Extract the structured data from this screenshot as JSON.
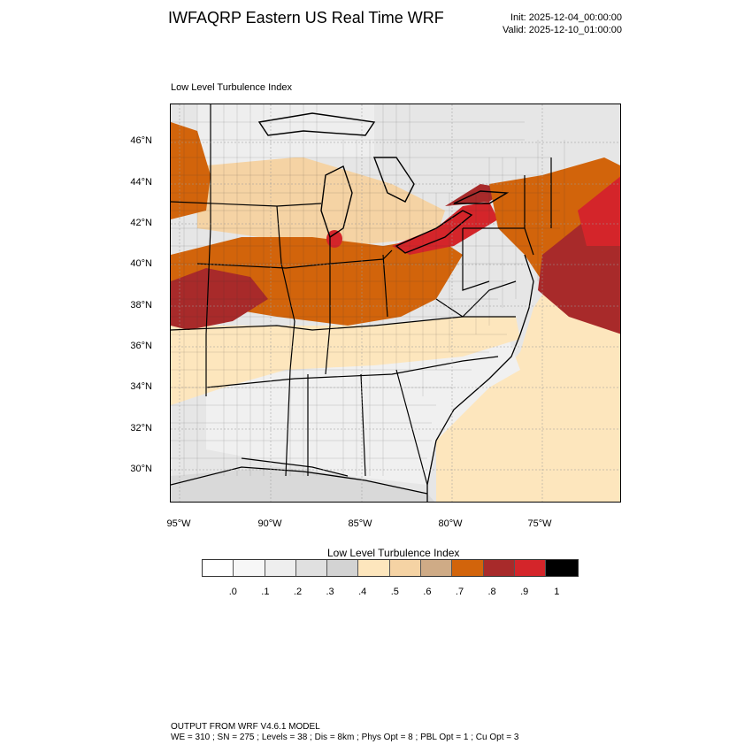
{
  "header": {
    "title": "IWFAQRP Eastern US Real Time WRF",
    "init": "Init: 2025-12-04_00:00:00",
    "valid": "Valid: 2025-12-10_01:00:00"
  },
  "map": {
    "field_label": "Low Level Turbulence Index",
    "lat_labels": [
      "46°N",
      "44°N",
      "42°N",
      "40°N",
      "38°N",
      "36°N",
      "34°N",
      "32°N",
      "30°N"
    ],
    "lon_labels": [
      "95°W",
      "90°W",
      "85°W",
      "80°W",
      "75°W"
    ]
  },
  "colorbar": {
    "title": "Low Level Turbulence Index",
    "colors": [
      "#ffffff",
      "#f7f7f7",
      "#eeeeee",
      "#e0e0e0",
      "#d3d3d3",
      "#fde6bd",
      "#f5d3a4",
      "#cfab86",
      "#d2640b",
      "#a82a2a",
      "#d4252a",
      "#000000"
    ],
    "labels": [
      ".0",
      ".1",
      ".2",
      ".3",
      ".4",
      ".5",
      ".6",
      ".7",
      ".8",
      ".9",
      "1"
    ]
  },
  "footer": {
    "line1": "OUTPUT FROM WRF V4.6.1 MODEL",
    "line2": "WE = 310 ; SN = 275 ; Levels = 38 ; Dis = 8km ; Phys Opt = 8 ; PBL Opt = 1 ; Cu Opt = 3"
  }
}
